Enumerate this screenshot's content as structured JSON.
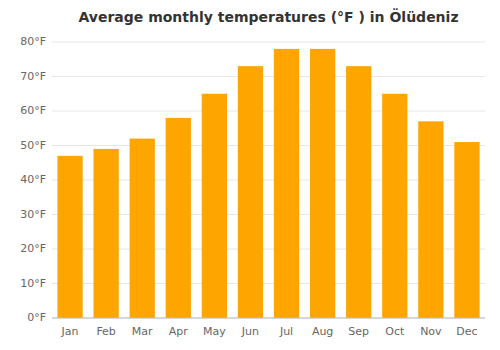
{
  "chart_data": {
    "type": "bar",
    "title": "Average monthly temperatures (°F ) in Ölüdeniz",
    "categories": [
      "Jan",
      "Feb",
      "Mar",
      "Apr",
      "May",
      "Jun",
      "Jul",
      "Aug",
      "Sep",
      "Oct",
      "Nov",
      "Dec"
    ],
    "values": [
      47,
      49,
      52,
      58,
      65,
      73,
      78,
      78,
      73,
      65,
      57,
      51
    ],
    "color": "#FFA500",
    "ylim": [
      0,
      80
    ],
    "yticks": [
      {
        "value": 0,
        "label": "0°F"
      },
      {
        "value": 10,
        "label": "10°F"
      },
      {
        "value": 20,
        "label": "20°F"
      },
      {
        "value": 30,
        "label": "30°F"
      },
      {
        "value": 40,
        "label": "40°F"
      },
      {
        "value": 50,
        "label": "50°F"
      },
      {
        "value": 60,
        "label": "60°F"
      },
      {
        "value": 70,
        "label": "70°F"
      },
      {
        "value": 80,
        "label": "80°F"
      }
    ],
    "grid": true
  }
}
